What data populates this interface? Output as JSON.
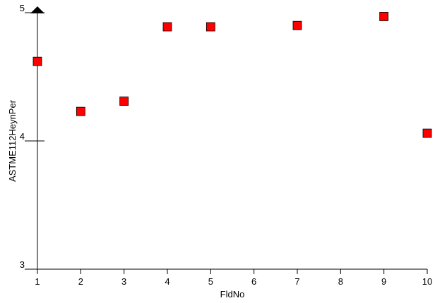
{
  "chart_data": {
    "type": "scatter",
    "xlabel": "FldNo",
    "ylabel": "ASTME112HeynPer",
    "xlim": [
      1,
      10
    ],
    "ylim": [
      3,
      5
    ],
    "x_ticks": [
      "1",
      "2",
      "3",
      "4",
      "5",
      "6",
      "7",
      "8",
      "9",
      "10"
    ],
    "y_ticks": [
      "3",
      "4",
      "5"
    ],
    "grid": false,
    "marker": "square",
    "marker_color": "#ff0000",
    "points": [
      {
        "x": 1,
        "y": 4.62
      },
      {
        "x": 2,
        "y": 4.23
      },
      {
        "x": 3,
        "y": 4.31
      },
      {
        "x": 4,
        "y": 4.89
      },
      {
        "x": 5,
        "y": 4.89
      },
      {
        "x": 7,
        "y": 4.9
      },
      {
        "x": 9,
        "y": 4.97
      },
      {
        "x": 10,
        "y": 4.06
      }
    ]
  }
}
